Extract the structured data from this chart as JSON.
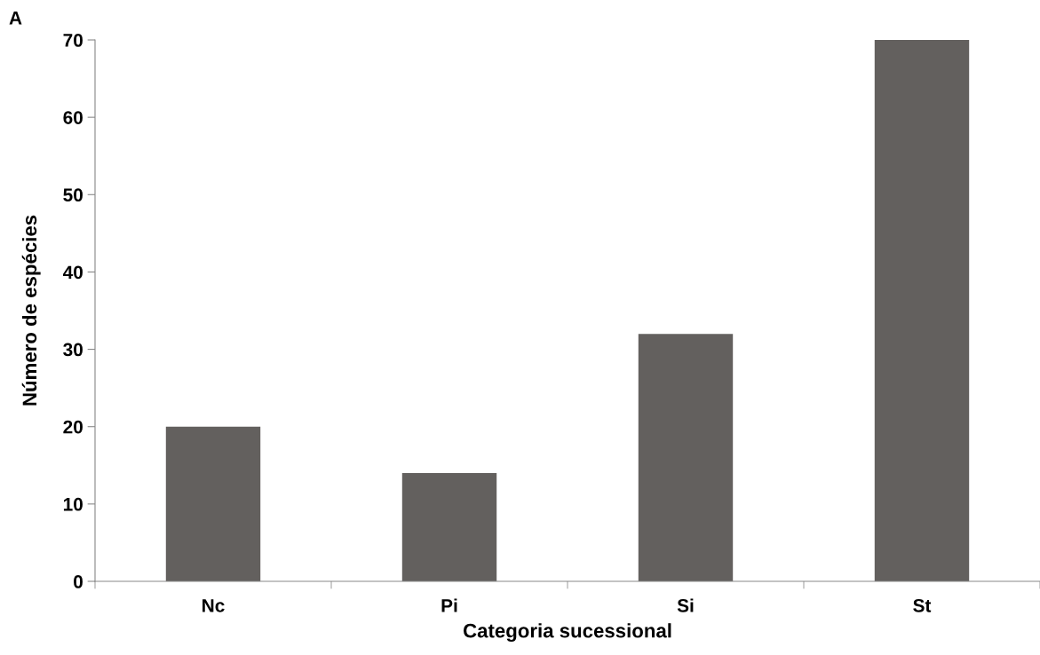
{
  "chart_data": {
    "type": "bar",
    "xlabel": "Categoria sucessional",
    "ylabel": "Número de espécies",
    "annotations": [
      "A"
    ],
    "categories": [
      "Nc",
      "Pi",
      "Si",
      "St"
    ],
    "values": [
      20,
      14,
      32,
      70
    ],
    "color": "#63605e",
    "ylim": [
      0,
      70
    ],
    "yticks": [
      0,
      10,
      20,
      30,
      40,
      50,
      60,
      70
    ],
    "grid": false,
    "legend": false
  }
}
